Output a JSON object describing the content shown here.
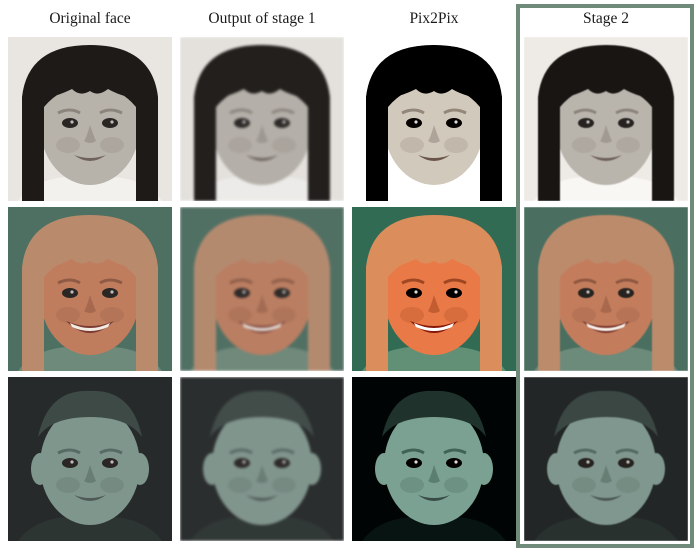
{
  "columns": [
    {
      "title": "Original face"
    },
    {
      "title": "Output of stage 1"
    },
    {
      "title": "Pix2Pix"
    },
    {
      "title": "Stage 2"
    }
  ],
  "rows": [
    {
      "subject": "toddler-girl-dark-bangs",
      "palette": {
        "bg": "#e9e6e1",
        "hair": "#1d1a18",
        "skin": "#b7b2aa",
        "shade": "#8c857d",
        "lip": "#6f625c",
        "shirt": "#f3f1ee"
      }
    },
    {
      "subject": "smiling-blonde-girl",
      "palette": {
        "bg": "#4d7062",
        "hair": "#b98a6c",
        "skin": "#c07d5e",
        "shade": "#8f5a44",
        "lip": "#7b3a32",
        "shirt": "#6e8a7a"
      }
    },
    {
      "subject": "young-boy-short-hair",
      "palette": {
        "bg": "#262a2a",
        "hair": "#3e4a46",
        "skin": "#7f968d",
        "shade": "#566b63",
        "lip": "#4f5a57",
        "shirt": "#2d3533"
      }
    }
  ],
  "accent": "#6f8a78"
}
